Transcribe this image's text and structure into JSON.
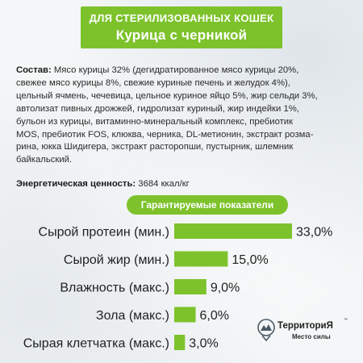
{
  "header": {
    "line1": "ДЛЯ СТЕРИЛИЗОВАННЫХ КОШЕК",
    "line2": "Курица с черникой"
  },
  "composition": {
    "label": "Состав:",
    "lines": [
      "Мясо курицы 32% (дегидратированное мясо курицы 20%,",
      "свежее мясо курицы 8%, свежие куриные печень и желудок 4%),",
      "цельный ячмень, чечевица, цельное куриное яйцо 5%, жир сельди 3%,",
      "автолизат пивных дрожжей, гидролизат куриный, жир индейки 1%,",
      "бульон из курицы, витаминно-минеральный комплекс, пребиотик",
      "MOS, пребиотик FOS, клюква, черника, DL-метионин, экстракт розма-",
      "рина, юкка Шидигера, экстракт расторопши, пустырник, шлемник",
      "байкальский."
    ]
  },
  "energy": {
    "label": "Энергетическая ценность:",
    "value": "3684 ккал/кг"
  },
  "guaranteed_title": "Гарантируемые показатели",
  "colors": {
    "accent": "#7dc22b",
    "text": "#1f1f1f",
    "background": "#f4f6f7"
  },
  "chart_data": {
    "type": "bar",
    "orientation": "horizontal",
    "title": "Гарантируемые показатели",
    "categories": [
      "Сырой протеин (мин.)",
      "Сырой жир (мин.)",
      "Влажность (макс.)",
      "Зола (макс.)",
      "Сырая клетчатка (макс.)"
    ],
    "values": [
      33.0,
      15.0,
      9.0,
      6.0,
      3.0
    ],
    "value_labels": [
      "33,0%",
      "15,0%",
      "9,0%",
      "6,0%",
      "3,0%"
    ],
    "unit": "%",
    "grid": false,
    "legend": "none"
  },
  "logo": {
    "name": "ТерриториЯ",
    "tm": "™",
    "tagline": "Место силы",
    "icon": "forest-emblem-icon"
  }
}
